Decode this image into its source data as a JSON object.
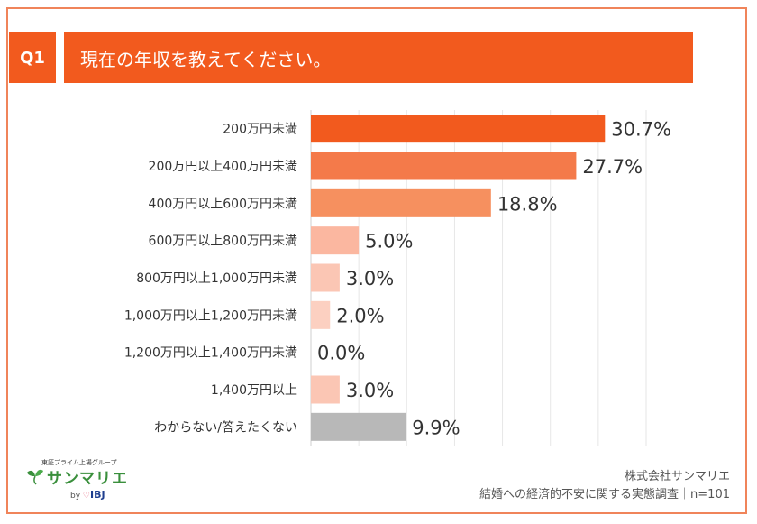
{
  "header": {
    "badge": "Q1",
    "question": "現在の年収を教えてください。"
  },
  "chart_data": {
    "type": "bar",
    "orientation": "horizontal",
    "categories": [
      "200万円未満",
      "200万円以上400万円未満",
      "400万円以上600万円未満",
      "600万円以上800万円未満",
      "800万円以上1,000万円未満",
      "1,000万円以上1,200万円未満",
      "1,200万円以上1,400万円未満",
      "1,400万円以上",
      "わからない/答えたくない"
    ],
    "values": [
      30.7,
      27.7,
      18.8,
      5.0,
      3.0,
      2.0,
      0.0,
      3.0,
      9.9
    ],
    "value_labels": [
      "30.7%",
      "27.7%",
      "18.8%",
      "5.0%",
      "3.0%",
      "2.0%",
      "0.0%",
      "3.0%",
      "9.9%"
    ],
    "colors": [
      "#f25a1e",
      "#f47a4a",
      "#f6905f",
      "#fbb7a0",
      "#fbc6b4",
      "#fcd0c1",
      "#fcd0c1",
      "#fbc6b4",
      "#b8b8b8"
    ],
    "xlim": [
      0,
      35
    ],
    "grid": true
  },
  "logo": {
    "tagline": "東証プライム上場グループ",
    "name": "サンマリエ",
    "by": "by",
    "parent": "IBJ"
  },
  "credit": {
    "company": "株式会社サンマリエ",
    "survey": "結婚への経済的不安に関する実態調査｜n=101"
  }
}
